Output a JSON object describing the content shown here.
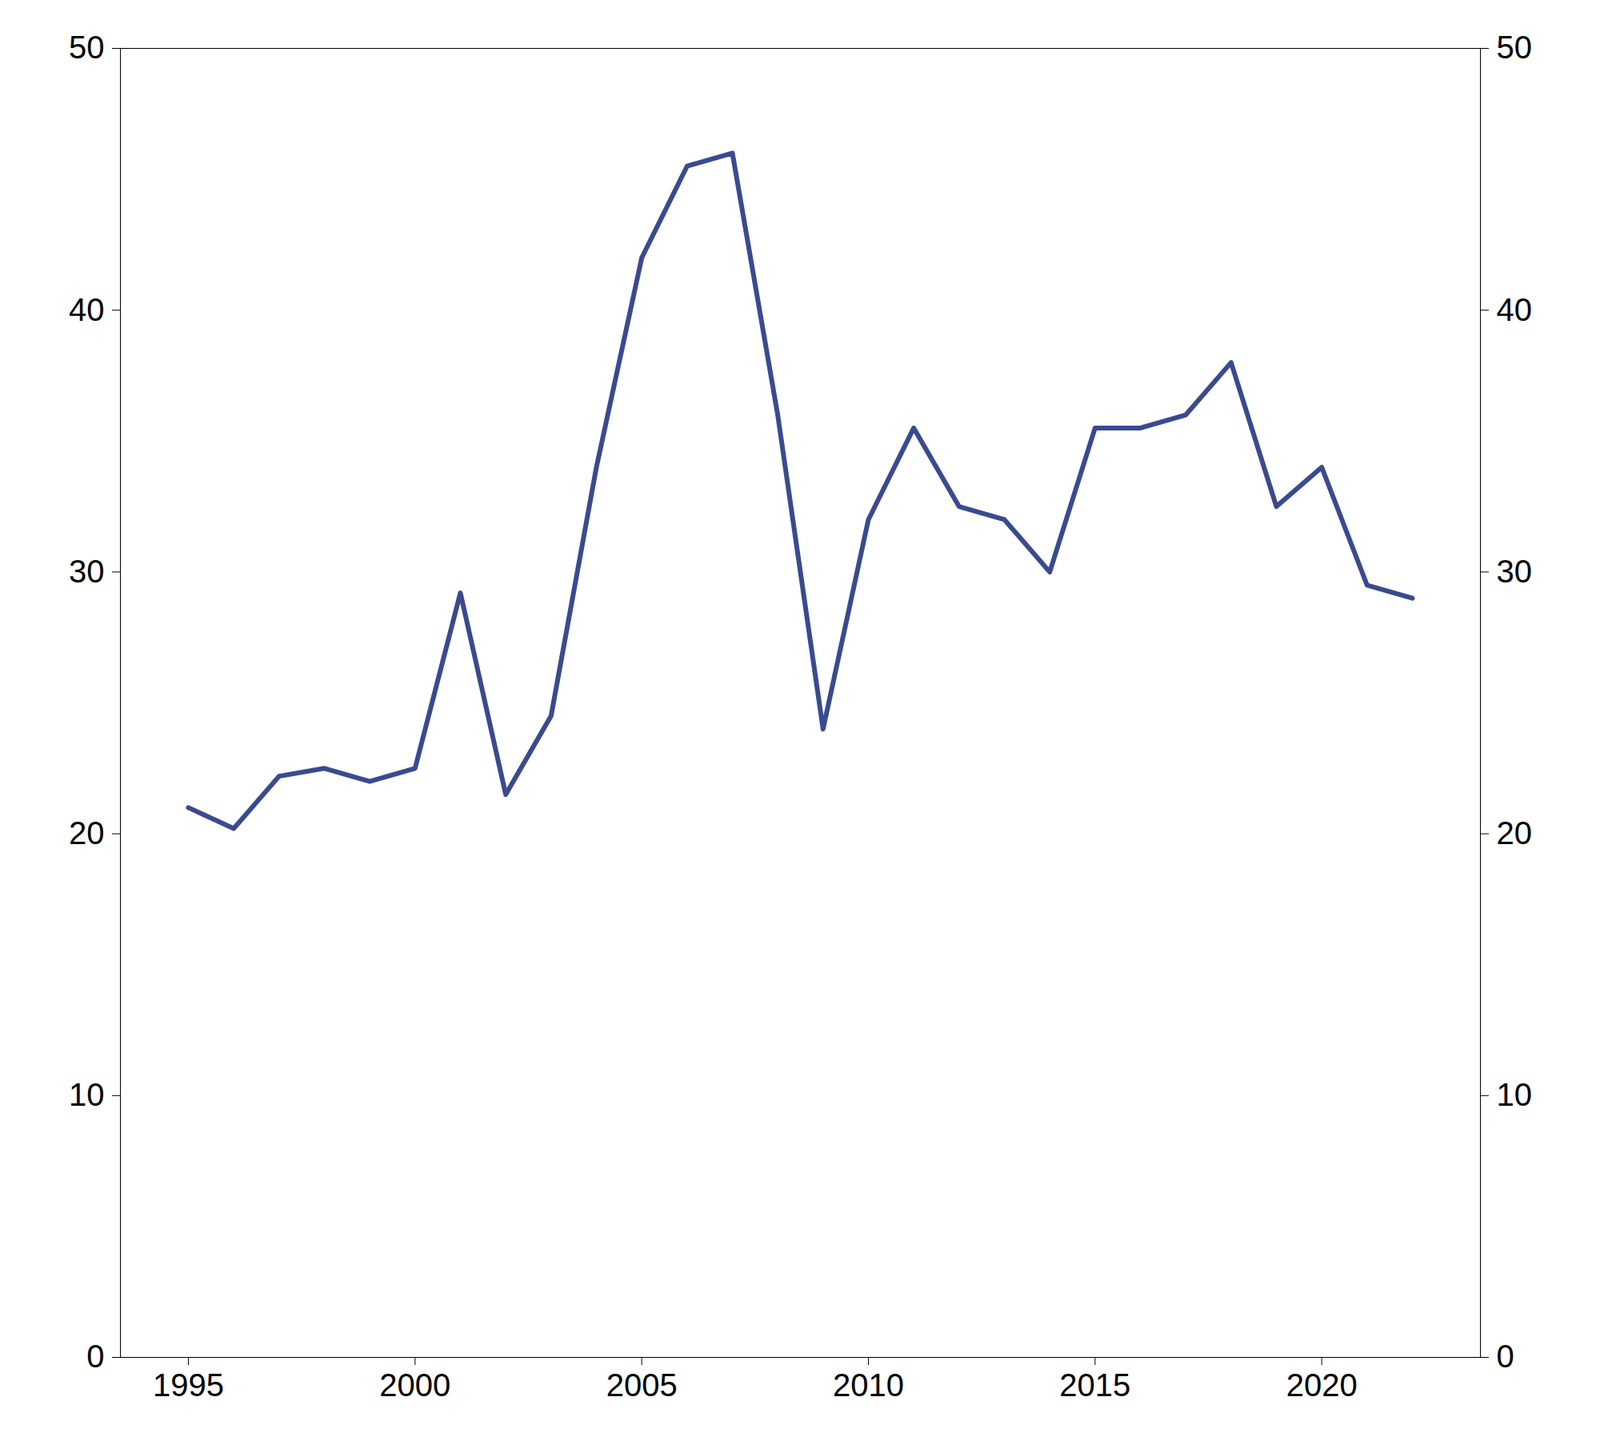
{
  "chart_data": {
    "type": "line",
    "x": [
      1995,
      1996,
      1997,
      1998,
      1999,
      2000,
      2001,
      2002,
      2003,
      2004,
      2005,
      2006,
      2007,
      2008,
      2009,
      2010,
      2011,
      2012,
      2013,
      2014,
      2015,
      2016,
      2017,
      2018,
      2019,
      2020,
      2021,
      2022
    ],
    "values": [
      21.0,
      20.2,
      22.2,
      22.5,
      22.0,
      22.5,
      29.2,
      21.5,
      24.5,
      34.0,
      42.0,
      45.5,
      46.0,
      36.0,
      24.0,
      32.0,
      35.5,
      32.5,
      32.0,
      30.0,
      35.5,
      35.5,
      36.0,
      38.0,
      32.5,
      34.0,
      29.5,
      29.0
    ],
    "color": "#3a4a8f",
    "xlim": [
      1993.5,
      2023.5
    ],
    "xticks": [
      1995,
      2000,
      2005,
      2010,
      2015,
      2020
    ],
    "ylim": [
      0,
      50
    ],
    "yticks": [
      0,
      10,
      20,
      30,
      40,
      50
    ],
    "grid": false
  }
}
